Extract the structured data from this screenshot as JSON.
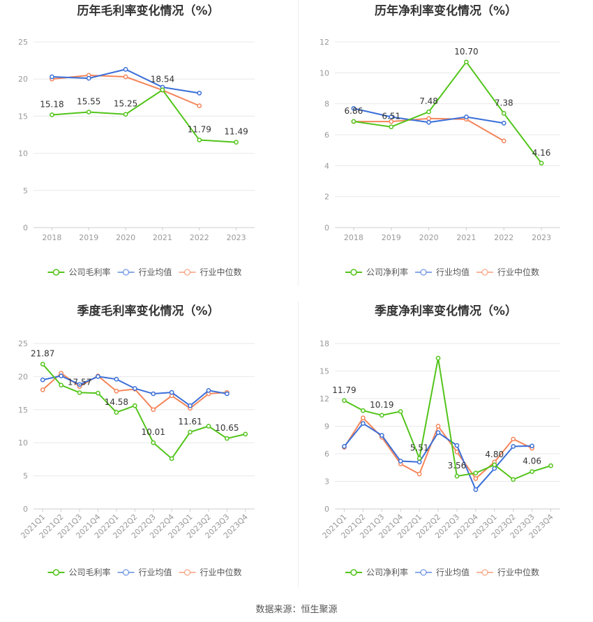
{
  "source_label": "数据来源：恒生聚源",
  "chart_data": [
    {
      "type": "line",
      "title": "历年毛利率变化情况（%）",
      "categories": [
        "2018",
        "2019",
        "2020",
        "2021",
        "2022",
        "2023"
      ],
      "ylim": [
        0,
        25
      ],
      "yticks": [
        0,
        5,
        10,
        15,
        20,
        25
      ],
      "grid": true,
      "legend_position": "bottom",
      "series": [
        {
          "name": "公司毛利率",
          "color": "#52c41a",
          "values": [
            15.18,
            15.55,
            15.25,
            18.54,
            11.79,
            11.49
          ],
          "labels": [
            "15.18",
            "15.55",
            "15.25",
            "18.54",
            "11.79",
            "11.49"
          ]
        },
        {
          "name": "行业均值",
          "color": "#3a6fd8",
          "values": [
            20.3,
            20.1,
            21.3,
            18.9,
            18.1,
            null
          ],
          "labels": []
        },
        {
          "name": "行业中位数",
          "color": "#f4855a",
          "values": [
            20.0,
            20.5,
            20.3,
            18.5,
            16.4,
            null
          ],
          "labels": []
        }
      ]
    },
    {
      "type": "line",
      "title": "历年净利率变化情况（%）",
      "categories": [
        "2018",
        "2019",
        "2020",
        "2021",
        "2022",
        "2023"
      ],
      "ylim": [
        0,
        12
      ],
      "yticks": [
        0,
        2,
        4,
        6,
        8,
        10,
        12
      ],
      "grid": true,
      "legend_position": "bottom",
      "series": [
        {
          "name": "公司净利率",
          "color": "#52c41a",
          "values": [
            6.86,
            6.51,
            7.48,
            10.7,
            7.38,
            4.16
          ],
          "labels": [
            "6.86",
            "6.51",
            "7.48",
            "10.70",
            "7.38",
            "4.16"
          ]
        },
        {
          "name": "行业均值",
          "color": "#3a6fd8",
          "values": [
            7.7,
            7.15,
            6.8,
            7.15,
            6.75,
            null
          ],
          "labels": []
        },
        {
          "name": "行业中位数",
          "color": "#f4855a",
          "values": [
            6.85,
            6.85,
            7.05,
            7.0,
            5.6,
            null
          ],
          "labels": []
        }
      ]
    },
    {
      "type": "line",
      "title": "季度毛利率变化情况（%）",
      "categories": [
        "2021Q1",
        "2021Q2",
        "2021Q3",
        "2021Q4",
        "2022Q1",
        "2022Q2",
        "2022Q3",
        "2022Q4",
        "2023Q1",
        "2023Q2",
        "2023Q3",
        "2023Q4"
      ],
      "ylim": [
        0,
        25
      ],
      "yticks": [
        0,
        5,
        10,
        15,
        20,
        25
      ],
      "grid": true,
      "legend_position": "bottom",
      "series": [
        {
          "name": "公司毛利率",
          "color": "#52c41a",
          "values": [
            21.87,
            18.7,
            17.57,
            17.5,
            14.58,
            15.6,
            10.01,
            7.6,
            11.61,
            12.5,
            10.65,
            11.3
          ],
          "labels": [
            "21.87",
            "",
            "17.57",
            "",
            "14.58",
            "",
            "10.01",
            "",
            "11.61",
            "",
            "10.65",
            ""
          ]
        },
        {
          "name": "行业均值",
          "color": "#3a6fd8",
          "values": [
            19.5,
            20.1,
            18.8,
            20.0,
            19.6,
            18.2,
            17.4,
            17.6,
            15.6,
            17.9,
            17.4,
            null
          ],
          "labels": []
        },
        {
          "name": "行业中位数",
          "color": "#f4855a",
          "values": [
            18.0,
            20.5,
            18.5,
            20.1,
            17.8,
            18.1,
            15.0,
            17.1,
            15.2,
            17.4,
            17.6,
            null
          ],
          "labels": []
        }
      ]
    },
    {
      "type": "line",
      "title": "季度净利率变化情况（%）",
      "categories": [
        "2021Q1",
        "2021Q2",
        "2021Q3",
        "2021Q4",
        "2022Q1",
        "2022Q2",
        "2022Q3",
        "2022Q4",
        "2023Q1",
        "2023Q2",
        "2023Q3",
        "2023Q4"
      ],
      "ylim": [
        0,
        18
      ],
      "yticks": [
        0,
        3,
        6,
        9,
        12,
        15,
        18
      ],
      "grid": true,
      "legend_position": "bottom",
      "series": [
        {
          "name": "公司净利率",
          "color": "#52c41a",
          "values": [
            11.79,
            10.7,
            10.19,
            10.6,
            5.51,
            16.4,
            3.56,
            3.9,
            4.8,
            3.2,
            4.06,
            4.7
          ],
          "labels": [
            "11.79",
            "",
            "10.19",
            "",
            "5.51",
            "",
            "3.56",
            "",
            "4.80",
            "",
            "4.06",
            ""
          ]
        },
        {
          "name": "行业均值",
          "color": "#3a6fd8",
          "values": [
            6.8,
            9.3,
            8.0,
            5.2,
            5.1,
            8.3,
            6.9,
            2.1,
            4.4,
            6.8,
            6.85,
            null
          ],
          "labels": []
        },
        {
          "name": "行业中位数",
          "color": "#f4855a",
          "values": [
            6.7,
            9.9,
            7.8,
            4.9,
            3.8,
            9.0,
            6.2,
            3.3,
            5.1,
            7.6,
            6.6,
            null
          ],
          "labels": []
        }
      ]
    }
  ]
}
